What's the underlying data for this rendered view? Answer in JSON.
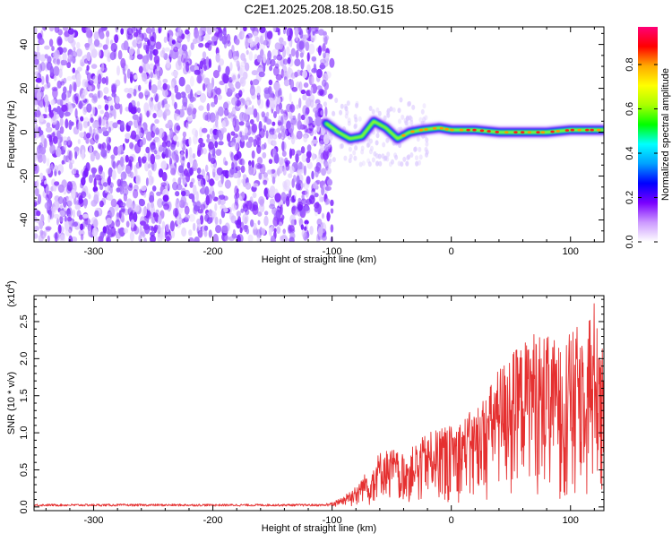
{
  "title": "C2E1.2025.208.18.50.G15",
  "chart_data": [
    {
      "type": "heatmap",
      "xlabel": "Height of straight line (km)",
      "ylabel": "Frequency (Hz)",
      "xlim": [
        -350,
        128
      ],
      "ylim": [
        -50,
        48
      ],
      "x_ticks": [
        -300,
        -200,
        -100,
        0,
        100
      ],
      "y_ticks": [
        -40,
        -20,
        0,
        20,
        40
      ],
      "noise_region": {
        "x": [
          -350,
          -100
        ],
        "y": [
          -50,
          48
        ]
      },
      "signal_trace": [
        {
          "x": -105,
          "y": 4
        },
        {
          "x": -95,
          "y": 0
        },
        {
          "x": -85,
          "y": -3
        },
        {
          "x": -75,
          "y": -2
        },
        {
          "x": -65,
          "y": 5
        },
        {
          "x": -55,
          "y": 2
        },
        {
          "x": -45,
          "y": -3
        },
        {
          "x": -35,
          "y": 0
        },
        {
          "x": -25,
          "y": 1
        },
        {
          "x": -10,
          "y": 2
        },
        {
          "x": 0,
          "y": 1
        },
        {
          "x": 20,
          "y": 1
        },
        {
          "x": 40,
          "y": 0
        },
        {
          "x": 60,
          "y": 0
        },
        {
          "x": 80,
          "y": 0
        },
        {
          "x": 100,
          "y": 1
        },
        {
          "x": 128,
          "y": 1
        }
      ],
      "colorbar": {
        "label": "Normalized spectral amplitude",
        "range": [
          0,
          0.97
        ],
        "ticks": [
          "0.0",
          "0.2",
          "0.4",
          "0.6",
          "0.8"
        ],
        "colors": [
          "#ffffff",
          "#cc99ff",
          "#7a00ff",
          "#0000ff",
          "#00a0ff",
          "#00ffff",
          "#00ff00",
          "#aaff00",
          "#ffff00",
          "#ffaa00",
          "#ff0000",
          "#ff0077"
        ]
      }
    },
    {
      "type": "line",
      "xlabel": "Height of straight line (km)",
      "ylabel": "SNR (10 * v/v)",
      "y_multiplier": "(x10",
      "y_multiplier_exp": "4",
      "y_multiplier_close": ")",
      "xlim": [
        -350,
        128
      ],
      "ylim": [
        -0.05,
        2.85
      ],
      "x_ticks": [
        -300,
        -200,
        -100,
        0,
        100
      ],
      "y_ticks": [
        "0.0",
        "0.5",
        "1.0",
        "1.5",
        "2.0",
        "2.5"
      ],
      "series_color": "#e53030",
      "envelope": [
        {
          "x": -350,
          "y": 0.04
        },
        {
          "x": -110,
          "y": 0.04
        },
        {
          "x": -100,
          "y": 0.06
        },
        {
          "x": -90,
          "y": 0.15
        },
        {
          "x": -80,
          "y": 0.3
        },
        {
          "x": -70,
          "y": 0.5
        },
        {
          "x": -60,
          "y": 0.75
        },
        {
          "x": -50,
          "y": 0.8
        },
        {
          "x": -40,
          "y": 0.7
        },
        {
          "x": -30,
          "y": 0.85
        },
        {
          "x": -20,
          "y": 1.0
        },
        {
          "x": -10,
          "y": 1.05
        },
        {
          "x": 0,
          "y": 1.1
        },
        {
          "x": 10,
          "y": 1.2
        },
        {
          "x": 20,
          "y": 1.35
        },
        {
          "x": 30,
          "y": 1.55
        },
        {
          "x": 40,
          "y": 1.9
        },
        {
          "x": 50,
          "y": 2.1
        },
        {
          "x": 60,
          "y": 2.2
        },
        {
          "x": 70,
          "y": 2.4
        },
        {
          "x": 80,
          "y": 2.3
        },
        {
          "x": 90,
          "y": 2.25
        },
        {
          "x": 100,
          "y": 2.35
        },
        {
          "x": 110,
          "y": 2.5
        },
        {
          "x": 120,
          "y": 2.8
        },
        {
          "x": 128,
          "y": 2.4
        }
      ]
    }
  ]
}
